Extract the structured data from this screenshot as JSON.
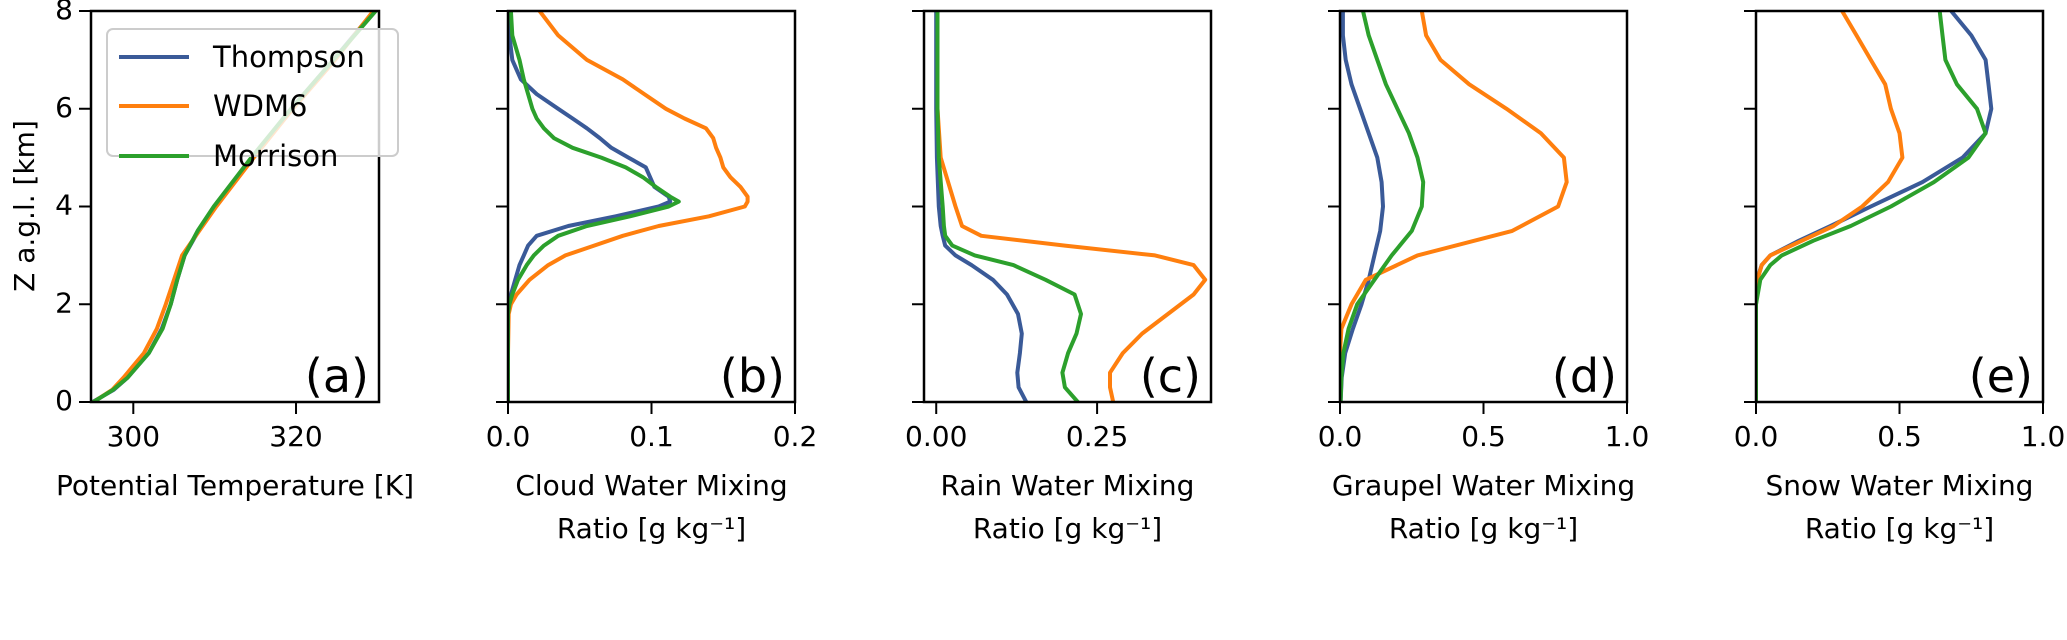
{
  "chart_data": {
    "type": "line",
    "legend": {
      "placement": "top-left of panel (a)",
      "entries": [
        {
          "name": "Thompson",
          "color": "#3a5a98"
        },
        {
          "name": "WDM6",
          "color": "#ff7f0e"
        },
        {
          "name": "Morrison",
          "color": "#2ca02c"
        }
      ]
    },
    "shared_y": {
      "label": "Z a.g.l. [km]",
      "ylim": [
        0,
        8
      ],
      "ticks": [
        0,
        2,
        4,
        6,
        8
      ],
      "tick_labels": [
        "0",
        "2",
        "4",
        "6",
        "8"
      ]
    },
    "panels": [
      {
        "id": "a",
        "panel_label": "(a)",
        "xlabel_lines": [
          "Potential Temperature [K]"
        ],
        "xlim": [
          294.8,
          330.2
        ],
        "xticks": [
          300,
          320
        ],
        "xtick_labels": [
          "300",
          "320"
        ],
        "z": [
          0,
          0.25,
          0.5,
          1,
          1.5,
          2,
          2.5,
          3,
          3.5,
          4,
          5,
          6,
          7,
          8
        ],
        "series": [
          {
            "name": "Thompson",
            "values": [
              295.0,
              297.6,
              299.3,
              301.9,
              303.5,
              304.6,
              305.4,
              306.3,
              308.0,
              310.0,
              314.6,
              319.4,
              324.6,
              329.6
            ]
          },
          {
            "name": "WDM6",
            "values": [
              295.1,
              297.4,
              298.8,
              301.3,
              302.9,
              304.0,
              305.0,
              306.0,
              308.1,
              310.2,
              314.8,
              319.6,
              324.8,
              329.5
            ]
          },
          {
            "name": "Morrison",
            "values": [
              295.1,
              297.5,
              299.3,
              301.9,
              303.6,
              304.6,
              305.4,
              306.3,
              307.9,
              309.9,
              314.5,
              319.4,
              324.6,
              329.8
            ]
          }
        ]
      },
      {
        "id": "b",
        "panel_label": "(b)",
        "xlabel_lines": [
          "Cloud Water Mixing",
          "Ratio [g kg⁻¹]"
        ],
        "xlim": [
          0.0,
          0.2
        ],
        "xticks": [
          0.0,
          0.1,
          0.2
        ],
        "xtick_labels": [
          "0.0",
          "0.1",
          "0.2"
        ],
        "z": [
          0,
          1,
          1.8,
          2.0,
          2.2,
          2.5,
          2.8,
          3.0,
          3.2,
          3.4,
          3.6,
          3.8,
          4.0,
          4.1,
          4.2,
          4.4,
          4.6,
          4.8,
          5.0,
          5.2,
          5.4,
          5.6,
          5.8,
          6.0,
          6.3,
          6.6,
          7.0,
          7.5,
          8.0
        ],
        "series": [
          {
            "name": "Thompson",
            "values": [
              0,
              0,
              0,
              0.0005,
              0.002,
              0.005,
              0.008,
              0.011,
              0.014,
              0.02,
              0.042,
              0.075,
              0.105,
              0.113,
              0.112,
              0.102,
              0.099,
              0.096,
              0.084,
              0.072,
              0.064,
              0.055,
              0.045,
              0.035,
              0.02,
              0.009,
              0.003,
              0.001,
              0.0
            ]
          },
          {
            "name": "WDM6",
            "values": [
              0,
              0,
              0.0005,
              0.002,
              0.006,
              0.015,
              0.028,
              0.04,
              0.06,
              0.08,
              0.105,
              0.14,
              0.165,
              0.167,
              0.167,
              0.162,
              0.155,
              0.15,
              0.148,
              0.145,
              0.143,
              0.138,
              0.123,
              0.11,
              0.095,
              0.08,
              0.055,
              0.035,
              0.022
            ]
          },
          {
            "name": "Morrison",
            "values": [
              0,
              0,
              0,
              0.001,
              0.003,
              0.007,
              0.013,
              0.018,
              0.025,
              0.035,
              0.055,
              0.085,
              0.112,
              0.119,
              0.113,
              0.103,
              0.094,
              0.082,
              0.065,
              0.045,
              0.032,
              0.025,
              0.02,
              0.017,
              0.014,
              0.011,
              0.008,
              0.003,
              0.002
            ]
          }
        ]
      },
      {
        "id": "c",
        "panel_label": "(c)",
        "xlabel_lines": [
          "Rain Water Mixing",
          "Ratio [g kg⁻¹]"
        ],
        "xlim": [
          -0.019,
          0.427
        ],
        "xticks": [
          0.0,
          0.25
        ],
        "xtick_labels": [
          "0.00",
          "0.25"
        ],
        "z": [
          0,
          0.3,
          0.6,
          1.0,
          1.4,
          1.8,
          2.2,
          2.5,
          2.8,
          3.0,
          3.2,
          3.4,
          3.6,
          4.0,
          5.0,
          6.0,
          7.0,
          8.0
        ],
        "series": [
          {
            "name": "Thompson",
            "values": [
              0.14,
              0.128,
              0.126,
              0.13,
              0.133,
              0.127,
              0.11,
              0.088,
              0.055,
              0.03,
              0.014,
              0.01,
              0.007,
              0.004,
              0.001,
              0.0,
              0.0,
              0.0
            ]
          },
          {
            "name": "WDM6",
            "values": [
              0.275,
              0.27,
              0.27,
              0.29,
              0.32,
              0.36,
              0.4,
              0.418,
              0.4,
              0.34,
              0.2,
              0.07,
              0.04,
              0.03,
              0.007,
              0.002,
              0.002,
              0.002
            ]
          },
          {
            "name": "Morrison",
            "values": [
              0.22,
              0.2,
              0.196,
              0.205,
              0.218,
              0.225,
              0.215,
              0.17,
              0.12,
              0.06,
              0.025,
              0.014,
              0.012,
              0.01,
              0.004,
              0.002,
              0.002,
              0.002
            ]
          }
        ]
      },
      {
        "id": "d",
        "panel_label": "(d)",
        "xlabel_lines": [
          "Graupel Water Mixing",
          "Ratio [g kg⁻¹]"
        ],
        "xlim": [
          0.0,
          1.0
        ],
        "xticks": [
          0.0,
          0.5,
          1.0
        ],
        "xtick_labels": [
          "0.0",
          "0.5",
          "1.0"
        ],
        "z": [
          0,
          0.5,
          1.0,
          1.5,
          2.0,
          2.5,
          3.0,
          3.5,
          4.0,
          4.5,
          5.0,
          5.5,
          6.0,
          6.5,
          7.0,
          7.5,
          8.0
        ],
        "series": [
          {
            "name": "Thompson",
            "values": [
              0.002,
              0.006,
              0.018,
              0.045,
              0.075,
              0.1,
              0.12,
              0.14,
              0.15,
              0.145,
              0.13,
              0.1,
              0.07,
              0.04,
              0.02,
              0.01,
              0.01
            ]
          },
          {
            "name": "WDM6",
            "values": [
              0.0,
              0.0,
              0.0,
              0.005,
              0.04,
              0.09,
              0.27,
              0.6,
              0.76,
              0.79,
              0.78,
              0.7,
              0.58,
              0.45,
              0.35,
              0.3,
              0.285
            ]
          },
          {
            "name": "Morrison",
            "values": [
              0.002,
              0.005,
              0.012,
              0.03,
              0.06,
              0.12,
              0.18,
              0.25,
              0.285,
              0.29,
              0.27,
              0.24,
              0.2,
              0.16,
              0.13,
              0.1,
              0.08
            ]
          }
        ]
      },
      {
        "id": "e",
        "panel_label": "(e)",
        "xlabel_lines": [
          "Snow Water Mixing",
          "Ratio [g kg⁻¹]"
        ],
        "xlim": [
          0.0,
          1.0
        ],
        "xticks": [
          0.0,
          0.5,
          1.0
        ],
        "xtick_labels": [
          "0.0",
          "0.5",
          "1.0"
        ],
        "z": [
          0,
          1.0,
          2.0,
          2.5,
          2.8,
          3.0,
          3.3,
          3.6,
          4.0,
          4.5,
          5.0,
          5.5,
          6.0,
          6.5,
          7.0,
          7.5,
          8.0
        ],
        "series": [
          {
            "name": "Thompson",
            "values": [
              0.0,
              0.0,
              0.0,
              0.003,
              0.02,
              0.05,
              0.15,
              0.26,
              0.4,
              0.58,
              0.72,
              0.8,
              0.82,
              0.81,
              0.8,
              0.75,
              0.68
            ]
          },
          {
            "name": "WDM6",
            "values": [
              0.0,
              0.0,
              0.0,
              0.005,
              0.02,
              0.05,
              0.16,
              0.27,
              0.37,
              0.46,
              0.51,
              0.5,
              0.47,
              0.45,
              0.4,
              0.35,
              0.3
            ]
          },
          {
            "name": "Morrison",
            "values": [
              0.0,
              0.0,
              0.0,
              0.015,
              0.05,
              0.09,
              0.2,
              0.33,
              0.47,
              0.62,
              0.74,
              0.8,
              0.77,
              0.7,
              0.66,
              0.65,
              0.64
            ]
          }
        ]
      }
    ]
  }
}
